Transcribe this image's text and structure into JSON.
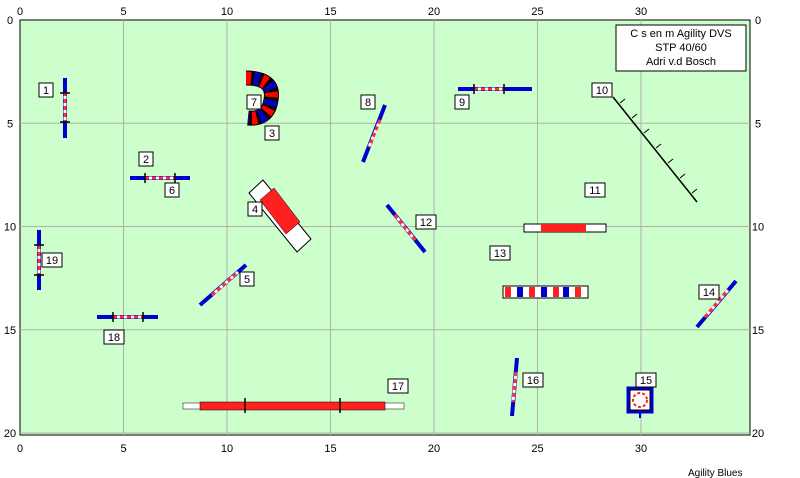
{
  "info_box": [
    "C s en m Agility DVS",
    "STP 40/60",
    "Adri v.d Bosch"
  ],
  "x_ticks": [
    0,
    5,
    10,
    15,
    20,
    25,
    30
  ],
  "y_ticks": [
    0,
    5,
    10,
    15,
    20
  ],
  "obstacle_labels": [
    "1",
    "2",
    "3",
    "4",
    "5",
    "6",
    "7",
    "8",
    "9",
    "10",
    "11",
    "12",
    "13",
    "14",
    "15",
    "16",
    "17",
    "18",
    "19"
  ],
  "footer": "Agility Blues"
}
